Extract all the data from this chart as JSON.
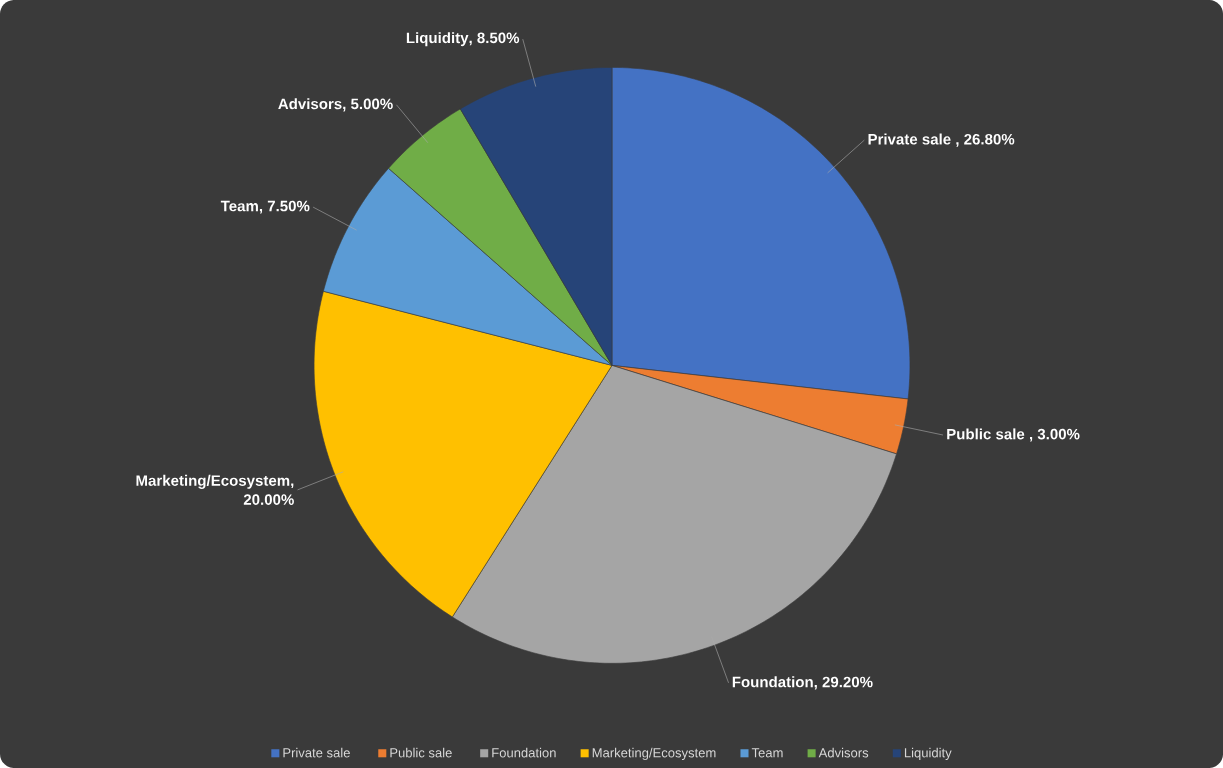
{
  "chart_data": {
    "type": "pie",
    "categories": [
      "Private sale ",
      "Public sale ",
      "Foundation",
      "Marketing/Ecosystem",
      "Team",
      "Advisors",
      "Liquidity"
    ],
    "values": [
      26.8,
      3.0,
      29.2,
      20.0,
      7.5,
      5.0,
      8.5
    ],
    "value_labels": [
      ", 26.80%",
      ", 3.00%",
      ", 29.20%",
      ", 20.00%",
      ", 7.50%",
      ", 5.00%",
      ", 8.50%"
    ],
    "colors": [
      "#4472c4",
      "#ed7d31",
      "#a5a5a5",
      "#ffc000",
      "#5b9bd5",
      "#70ad47",
      "#264478"
    ],
    "legend": "bottom"
  }
}
